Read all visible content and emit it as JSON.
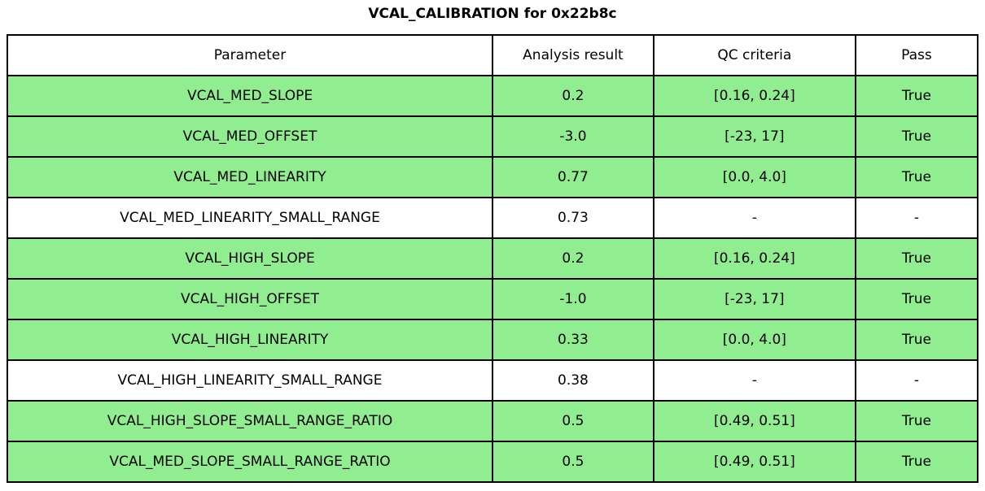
{
  "title": "VCAL_CALIBRATION for 0x22b8c",
  "chart_data": {
    "type": "table",
    "title": "VCAL_CALIBRATION for 0x22b8c",
    "columns": [
      "Parameter",
      "Analysis result",
      "QC criteria",
      "Pass"
    ],
    "rows": [
      {
        "parameter": "VCAL_MED_SLOPE",
        "analysis_result": "0.2",
        "qc_criteria": "[0.16, 0.24]",
        "pass": "True",
        "row_color": "green"
      },
      {
        "parameter": "VCAL_MED_OFFSET",
        "analysis_result": "-3.0",
        "qc_criteria": "[-23, 17]",
        "pass": "True",
        "row_color": "green"
      },
      {
        "parameter": "VCAL_MED_LINEARITY",
        "analysis_result": "0.77",
        "qc_criteria": "[0.0, 4.0]",
        "pass": "True",
        "row_color": "green"
      },
      {
        "parameter": "VCAL_MED_LINEARITY_SMALL_RANGE",
        "analysis_result": "0.73",
        "qc_criteria": "-",
        "pass": "-",
        "row_color": "white"
      },
      {
        "parameter": "VCAL_HIGH_SLOPE",
        "analysis_result": "0.2",
        "qc_criteria": "[0.16, 0.24]",
        "pass": "True",
        "row_color": "green"
      },
      {
        "parameter": "VCAL_HIGH_OFFSET",
        "analysis_result": "-1.0",
        "qc_criteria": "[-23, 17]",
        "pass": "True",
        "row_color": "green"
      },
      {
        "parameter": "VCAL_HIGH_LINEARITY",
        "analysis_result": "0.33",
        "qc_criteria": "[0.0, 4.0]",
        "pass": "True",
        "row_color": "green"
      },
      {
        "parameter": "VCAL_HIGH_LINEARITY_SMALL_RANGE",
        "analysis_result": "0.38",
        "qc_criteria": "-",
        "pass": "-",
        "row_color": "white"
      },
      {
        "parameter": "VCAL_HIGH_SLOPE_SMALL_RANGE_RATIO",
        "analysis_result": "0.5",
        "qc_criteria": "[0.49, 0.51]",
        "pass": "True",
        "row_color": "green"
      },
      {
        "parameter": "VCAL_MED_SLOPE_SMALL_RANGE_RATIO",
        "analysis_result": "0.5",
        "qc_criteria": "[0.49, 0.51]",
        "pass": "True",
        "row_color": "green"
      }
    ]
  },
  "colors": {
    "pass_row_green": "#90ee90",
    "neutral_row_white": "#ffffff",
    "border_black": "#000000",
    "text_black": "#000000"
  }
}
